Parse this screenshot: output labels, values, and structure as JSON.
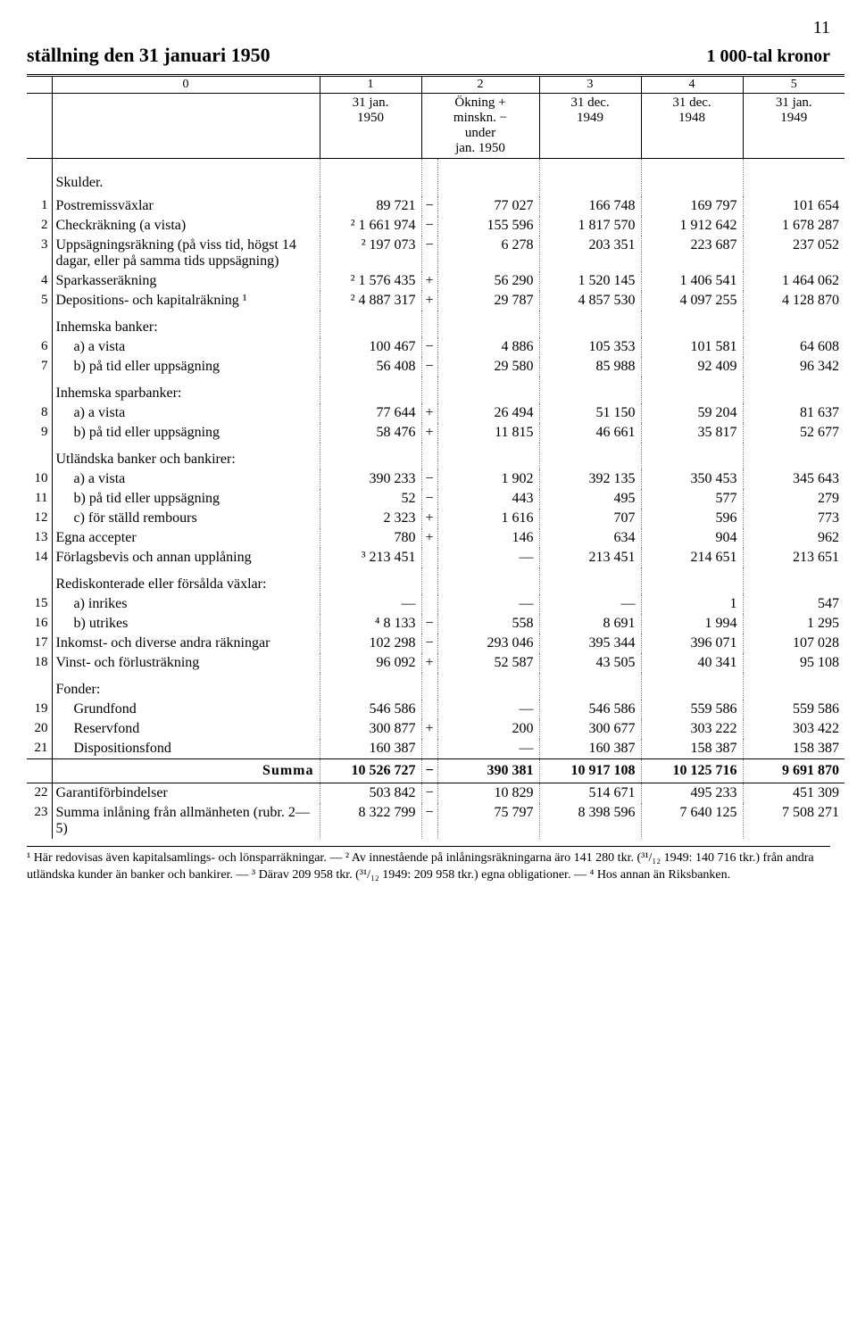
{
  "page_number": "11",
  "title_left": "ställning den 31 januari 1950",
  "title_right": "1 000-tal kronor",
  "col_nums": [
    "0",
    "1",
    "2",
    "3",
    "4",
    "5"
  ],
  "col_heads": {
    "c1": "31 jan.\n1950",
    "c2": "Ökning +\nminskn. −\nunder\njan. 1950",
    "c3": "31 dec.\n1949",
    "c4": "31 dec.\n1948",
    "c5": "31 jan.\n1949"
  },
  "section_title": "Skulder.",
  "rows": [
    {
      "n": "1",
      "label": "Postremissväxlar",
      "c1": "89 721",
      "s": "−",
      "c2": "77 027",
      "c3": "166 748",
      "c4": "169 797",
      "c5": "101 654"
    },
    {
      "n": "2",
      "label": "Checkräkning (a vista)",
      "c1": "² 1 661 974",
      "s": "−",
      "c2": "155 596",
      "c3": "1 817 570",
      "c4": "1 912 642",
      "c5": "1 678 287"
    },
    {
      "n": "3",
      "label": "Uppsägningsräkning (på viss tid, högst 14 dagar, eller på samma tids uppsägning)",
      "c1": "² 197 073",
      "s": "−",
      "c2": "6 278",
      "c3": "203 351",
      "c4": "223 687",
      "c5": "237 052",
      "wrap": true
    },
    {
      "n": "4",
      "label": "Sparkasseräkning",
      "c1": "² 1 576 435",
      "s": "+",
      "c2": "56 290",
      "c3": "1 520 145",
      "c4": "1 406 541",
      "c5": "1 464 062"
    },
    {
      "n": "5",
      "label": "Depositions- och kapitalräkning ¹",
      "c1": "² 4 887 317",
      "s": "+",
      "c2": "29 787",
      "c3": "4 857 530",
      "c4": "4 097 255",
      "c5": "4 128 870"
    },
    {
      "group": "Inhemska banker:"
    },
    {
      "n": "6",
      "label": "a) a vista",
      "sub": true,
      "c1": "100 467",
      "s": "−",
      "c2": "4 886",
      "c3": "105 353",
      "c4": "101 581",
      "c5": "64 608"
    },
    {
      "n": "7",
      "label": "b) på tid eller uppsägning",
      "sub": true,
      "c1": "56 408",
      "s": "−",
      "c2": "29 580",
      "c3": "85 988",
      "c4": "92 409",
      "c5": "96 342"
    },
    {
      "group": "Inhemska sparbanker:"
    },
    {
      "n": "8",
      "label": "a) a vista",
      "sub": true,
      "c1": "77 644",
      "s": "+",
      "c2": "26 494",
      "c3": "51 150",
      "c4": "59 204",
      "c5": "81 637"
    },
    {
      "n": "9",
      "label": "b) på tid eller uppsägning",
      "sub": true,
      "c1": "58 476",
      "s": "+",
      "c2": "11 815",
      "c3": "46 661",
      "c4": "35 817",
      "c5": "52 677"
    },
    {
      "group": "Utländska banker och bankirer:"
    },
    {
      "n": "10",
      "label": "a) a vista",
      "sub": true,
      "c1": "390 233",
      "s": "−",
      "c2": "1 902",
      "c3": "392 135",
      "c4": "350 453",
      "c5": "345 643"
    },
    {
      "n": "11",
      "label": "b) på tid eller uppsägning",
      "sub": true,
      "c1": "52",
      "s": "−",
      "c2": "443",
      "c3": "495",
      "c4": "577",
      "c5": "279"
    },
    {
      "n": "12",
      "label": "c) för ställd rembours",
      "sub": true,
      "c1": "2 323",
      "s": "+",
      "c2": "1 616",
      "c3": "707",
      "c4": "596",
      "c5": "773"
    },
    {
      "n": "13",
      "label": "Egna accepter",
      "c1": "780",
      "s": "+",
      "c2": "146",
      "c3": "634",
      "c4": "904",
      "c5": "962"
    },
    {
      "n": "14",
      "label": "Förlagsbevis och annan upplåning",
      "c1": "³ 213 451",
      "s": "",
      "c2": "—",
      "c3": "213 451",
      "c4": "214 651",
      "c5": "213 651"
    },
    {
      "group": "Rediskonterade eller försålda växlar:"
    },
    {
      "n": "15",
      "label": "a) inrikes",
      "sub": true,
      "c1": "—",
      "s": "",
      "c2": "—",
      "c3": "—",
      "c4": "1",
      "c5": "547"
    },
    {
      "n": "16",
      "label": "b) utrikes",
      "sub": true,
      "c1": "⁴ 8 133",
      "s": "−",
      "c2": "558",
      "c3": "8 691",
      "c4": "1 994",
      "c5": "1 295"
    },
    {
      "n": "17",
      "label": "Inkomst- och diverse andra räkningar",
      "c1": "102 298",
      "s": "−",
      "c2": "293 046",
      "c3": "395 344",
      "c4": "396 071",
      "c5": "107 028"
    },
    {
      "n": "18",
      "label": "Vinst- och förlusträkning",
      "c1": "96 092",
      "s": "+",
      "c2": "52 587",
      "c3": "43 505",
      "c4": "40 341",
      "c5": "95 108"
    },
    {
      "group": "Fonder:"
    },
    {
      "n": "19",
      "label": "Grundfond",
      "sub": true,
      "c1": "546 586",
      "s": "",
      "c2": "—",
      "c3": "546 586",
      "c4": "559 586",
      "c5": "559 586"
    },
    {
      "n": "20",
      "label": "Reservfond",
      "sub": true,
      "c1": "300 877",
      "s": "+",
      "c2": "200",
      "c3": "300 677",
      "c4": "303 222",
      "c5": "303 422"
    },
    {
      "n": "21",
      "label": "Dispositionsfond",
      "sub": true,
      "c1": "160 387",
      "s": "",
      "c2": "—",
      "c3": "160 387",
      "c4": "158 387",
      "c5": "158 387"
    }
  ],
  "summa": {
    "label": "Summa",
    "c1": "10 526 727",
    "s": "−",
    "c2": "390 381",
    "c3": "10 917 108",
    "c4": "10 125 716",
    "c5": "9 691 870"
  },
  "post_rows": [
    {
      "n": "22",
      "label": "Garantiförbindelser",
      "c1": "503 842",
      "s": "−",
      "c2": "10 829",
      "c3": "514 671",
      "c4": "495 233",
      "c5": "451 309"
    },
    {
      "n": "23",
      "label": "Summa inlåning från allmänheten (rubr. 2—5)",
      "c1": "8 322 799",
      "s": "−",
      "c2": "75 797",
      "c3": "8 398 596",
      "c4": "7 640 125",
      "c5": "7 508 271",
      "wrap": true
    }
  ],
  "footnotes": "¹ Här redovisas även kapitalsamlings- och lönsparräkningar. — ² Av innestående på inlåningsräkningarna äro 141 280 tkr. (³¹/₁₂ 1949: 140 716 tkr.) från andra utländska kunder än banker och bankirer. — ³ Därav 209 958 tkr. (³¹/₁₂ 1949: 209 958 tkr.) egna obligationer. — ⁴ Hos annan än Riksbanken."
}
